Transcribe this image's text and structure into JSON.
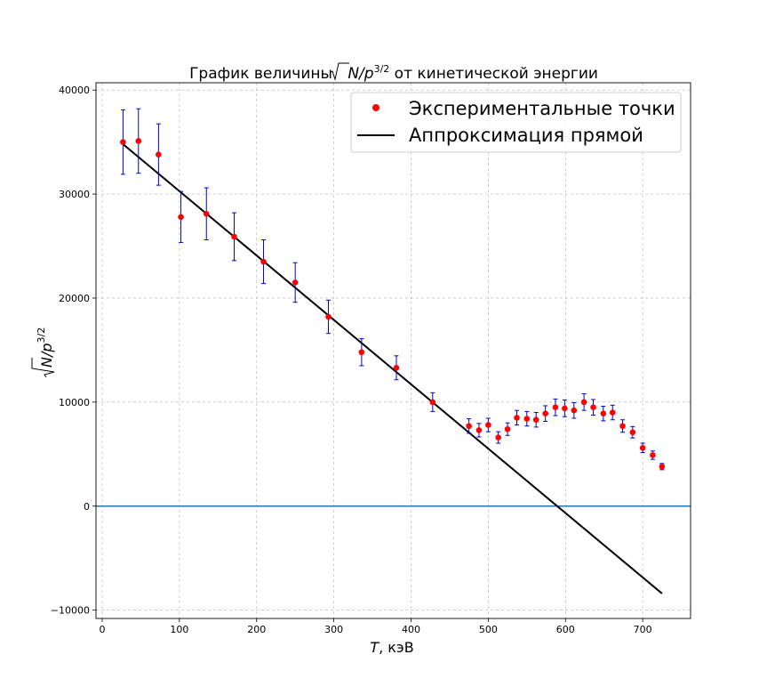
{
  "chart_data": {
    "type": "scatter",
    "title": {
      "prefix": "График величины ",
      "sqrt_var": "N",
      "slash": "/",
      "p": "p",
      "exp": "3/2",
      "suffix": " от кинетической энергии"
    },
    "xlabel": {
      "var": "T",
      "unit": ", кэВ"
    },
    "ylabel": {
      "sqrt_var": "N",
      "slash": "/",
      "p": "p",
      "exp": "3/2"
    },
    "xlim": [
      -8,
      762
    ],
    "ylim": [
      -10800,
      40700
    ],
    "xticks": [
      0,
      100,
      200,
      300,
      400,
      500,
      600,
      700
    ],
    "yticks": [
      -10000,
      0,
      10000,
      20000,
      30000,
      40000
    ],
    "grid": true,
    "legend_position": "top-right",
    "colors": {
      "points": "#ff0000",
      "errorbars": "#0000cd",
      "fit": "#000000",
      "zero_line": "#1f77b4",
      "grid": "#b0b0b0"
    },
    "series": [
      {
        "name": "Экспериментальные точки",
        "kind": "points_with_errorbars",
        "x": [
          27,
          47,
          73,
          102,
          135,
          171,
          209,
          250,
          293,
          336,
          381,
          428,
          475,
          488,
          500,
          513,
          525,
          537,
          550,
          562,
          574,
          587,
          599,
          611,
          624,
          636,
          649,
          661,
          674,
          687,
          700,
          713,
          725
        ],
        "y": [
          35000,
          35100,
          33800,
          27800,
          28100,
          25900,
          23500,
          21500,
          18200,
          14800,
          13300,
          10000,
          7700,
          7300,
          7800,
          6600,
          7400,
          8500,
          8400,
          8300,
          8900,
          9500,
          9400,
          9200,
          10000,
          9500,
          8900,
          9000,
          7700,
          7100,
          5600,
          4900,
          3800
        ],
        "yerr": [
          3100,
          3100,
          2950,
          2450,
          2500,
          2300,
          2100,
          1900,
          1600,
          1300,
          1150,
          900,
          700,
          650,
          650,
          550,
          600,
          700,
          700,
          700,
          750,
          800,
          800,
          750,
          800,
          750,
          700,
          700,
          600,
          550,
          450,
          400,
          300
        ]
      },
      {
        "name": "Аппроксимация прямой",
        "kind": "line",
        "x": [
          27,
          725
        ],
        "y": [
          34800,
          -8400
        ]
      }
    ],
    "reference_lines": [
      {
        "orientation": "horizontal",
        "y": 0
      }
    ]
  }
}
